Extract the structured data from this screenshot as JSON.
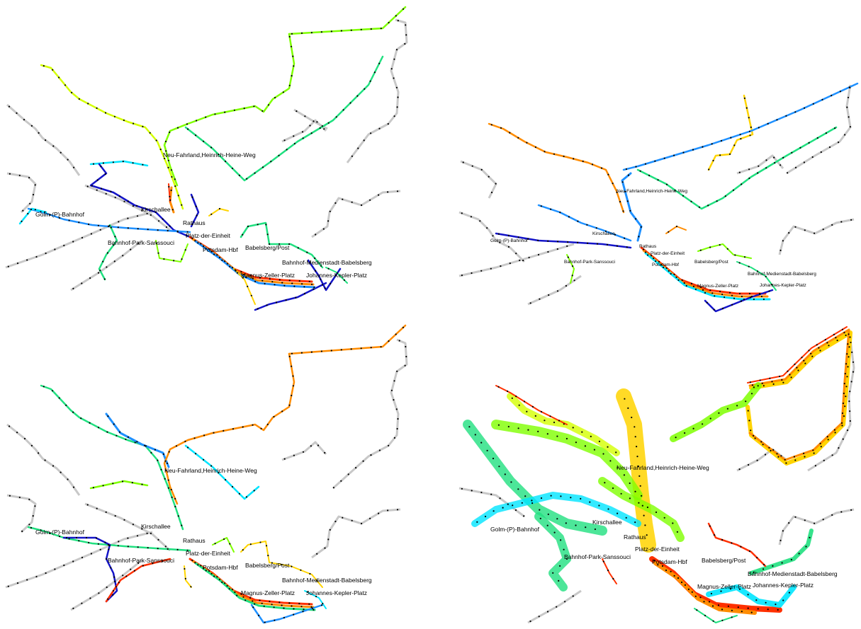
{
  "panels": [
    {
      "id": "top-left",
      "labels": [
        "Neu-Fahrland,Heinrich-Heine-Weg",
        "Kirschallee",
        "Golm-(P)-Bahnhof",
        "Rathaus",
        "Platz-der-Einheit",
        "Bahnhof-Park-Sanssouci",
        "Potsdam-Hbf",
        "Babelsberg/Post",
        "Bahnhof-Medienstadt-Babelsberg",
        "Magnus-Zeller-Platz",
        "Johannes-Kepler-Platz"
      ]
    },
    {
      "id": "top-right",
      "labels": [
        "Neu-Fahrland,Heinrich-Heine-Weg",
        "Kirschallee",
        "Golm-(P)-Bahnhof",
        "Rathaus",
        "Platz-der-Einheit",
        "Bahnhof-Park-Sanssouci",
        "Potsdam-Hbf",
        "Babelsberg/Post",
        "Bahnhof-Medienstadt-Babelsberg",
        "Magnus-Zeller-Platz",
        "Johannes-Kepler-Platz"
      ]
    },
    {
      "id": "bottom-left",
      "labels": [
        "Neu-Fahrland,Heinrich-Heine-Weg",
        "Kirschallee",
        "Golm-(P)-Bahnhof",
        "Rathaus",
        "Platz-der-Einheit",
        "Bahnhof-Park-Sanssouci",
        "Potsdam-Hbf",
        "Babelsberg/Post",
        "Bahnhof-Medienstadt-Babelsberg",
        "Magnus-Zeller-Platz",
        "Johannes-Kepler-Platz"
      ]
    },
    {
      "id": "bottom-right",
      "labels": [
        "Neu-Fahrland,Heinrich-Heine-Weg",
        "Kirschallee",
        "Golm-(P)-Bahnhof",
        "Rathaus",
        "Platz-der-Einheit",
        "Bahnhof-Park-Sanssouci",
        "Potsdam-Hbf",
        "Babelsberg/Post",
        "Bahnhof-Medienstadt-Babelsberg",
        "Magnus-Zeller-Platz",
        "Johannes-Kepler-Platz"
      ]
    }
  ],
  "colors": {
    "base_network": "#c8c8c8",
    "stop_marker": "#000000",
    "scale": [
      "#1414c8",
      "#1e90ff",
      "#00e5ff",
      "#20e080",
      "#7fff00",
      "#d4ff00",
      "#ffd400",
      "#ff8c00",
      "#ff3000"
    ]
  }
}
